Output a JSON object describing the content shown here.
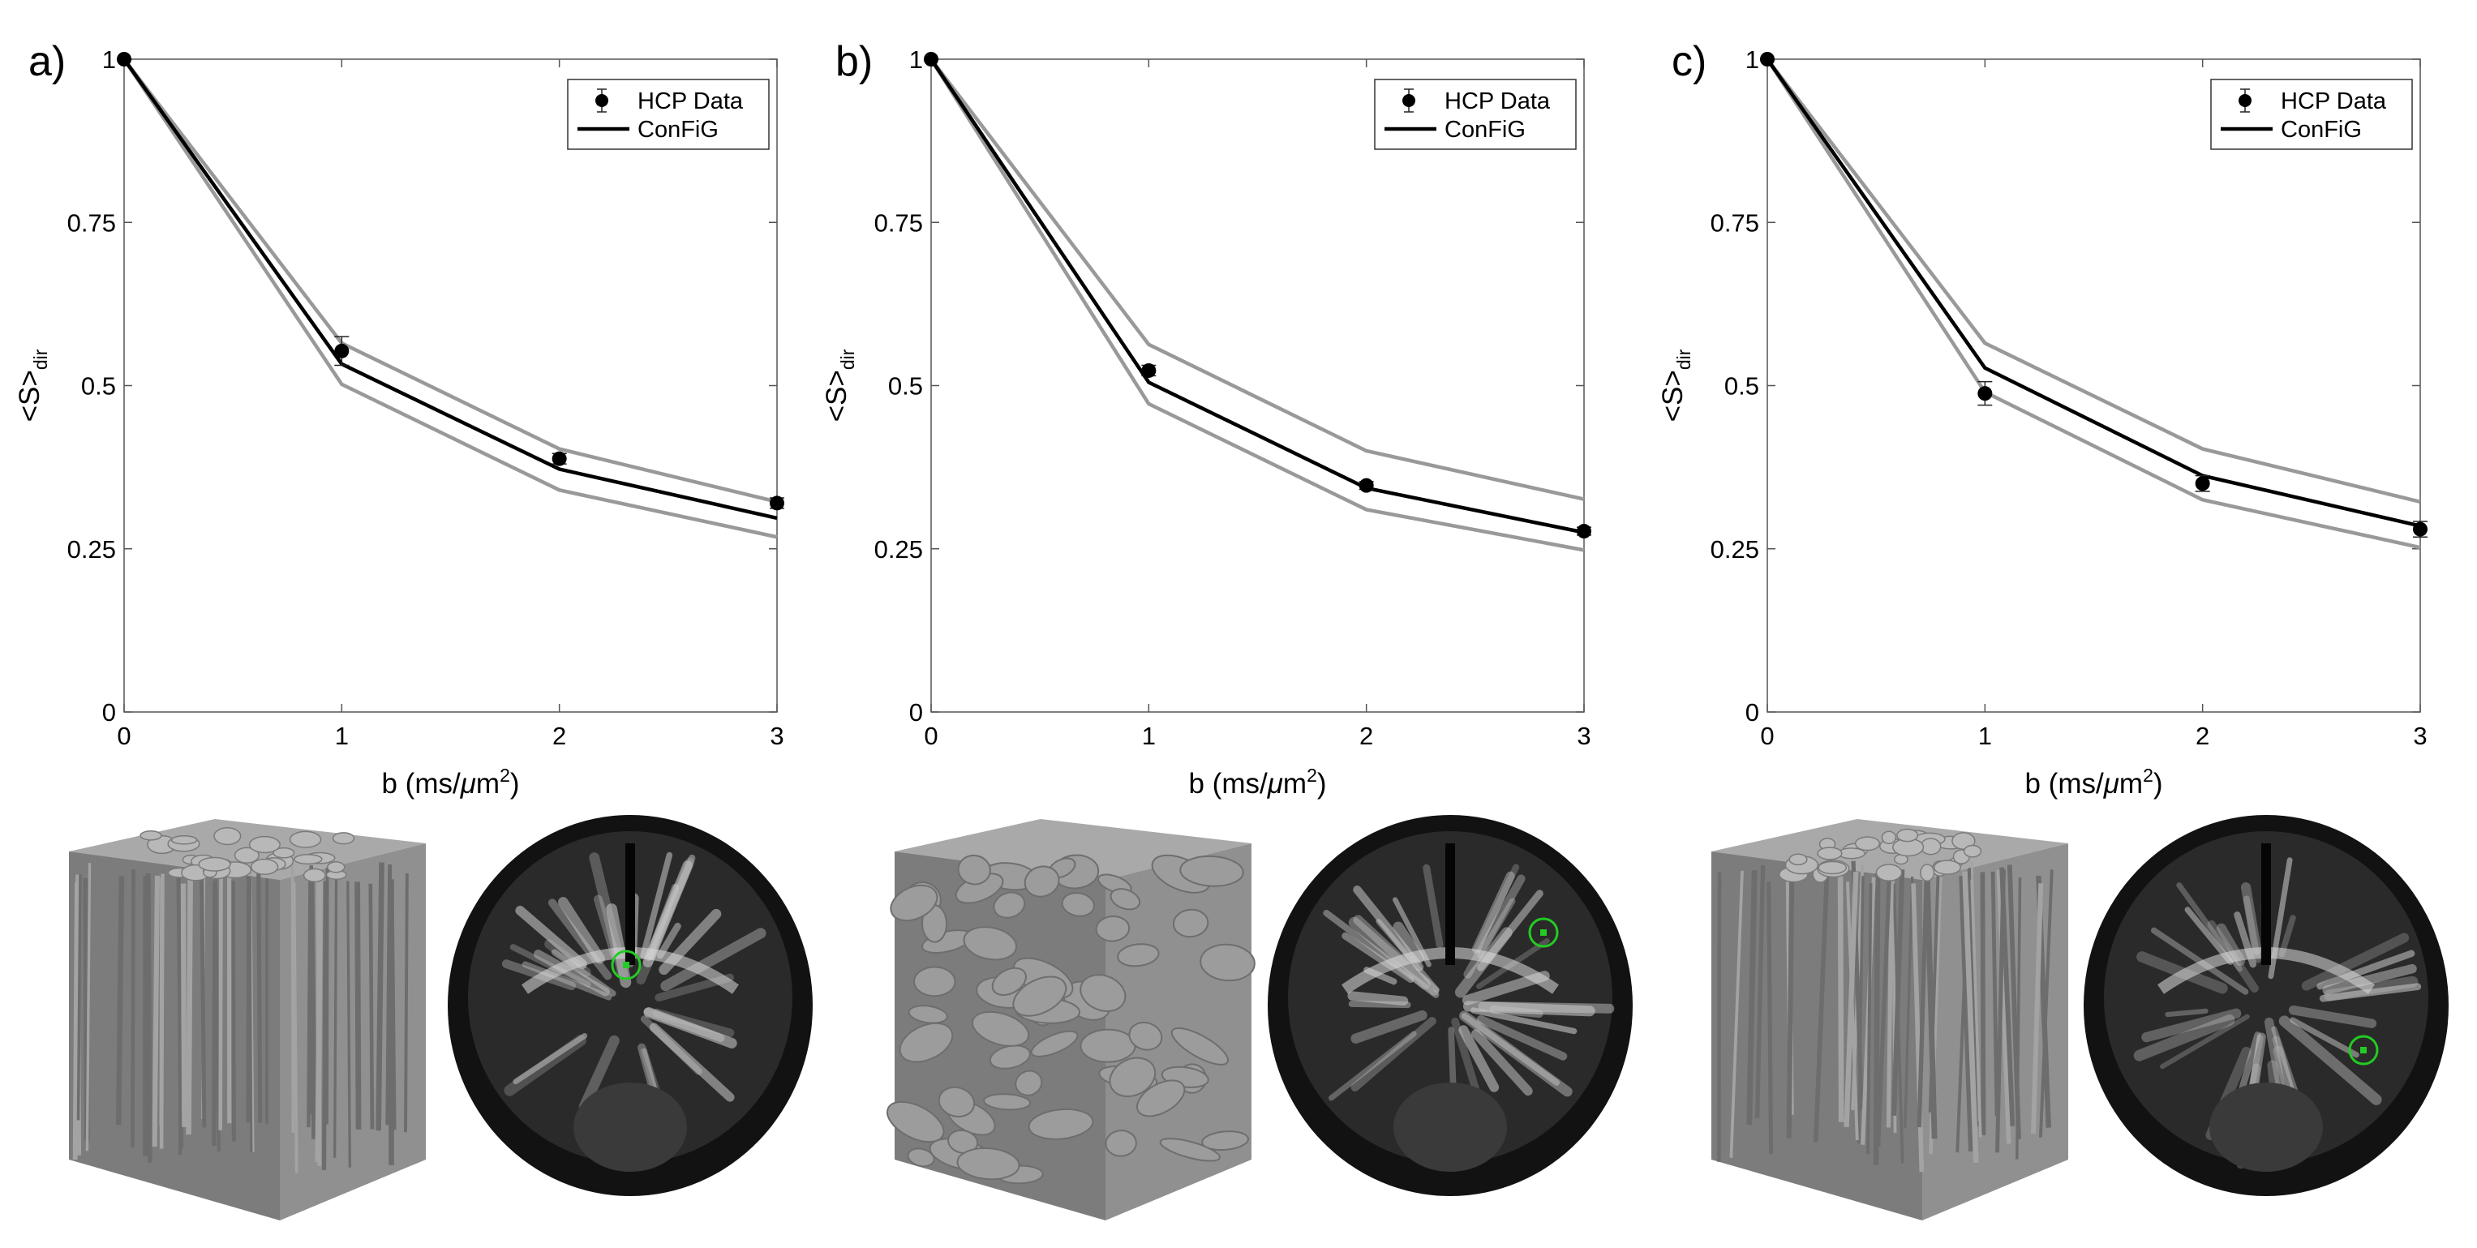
{
  "figure": {
    "panels": [
      {
        "label": "a)",
        "legend": [
          "HCP Data",
          "ConFiG"
        ],
        "brain_type": "coronal-deep",
        "substrate_type": "vertical"
      },
      {
        "label": "b)",
        "legend": [
          "HCP Data",
          "ConFiG"
        ],
        "brain_type": "coronal-mid",
        "substrate_type": "crossing"
      },
      {
        "label": "c)",
        "legend": [
          "HCP Data",
          "ConFiG"
        ],
        "brain_type": "coronal-posterior",
        "substrate_type": "dispersed"
      }
    ],
    "colors": {
      "data_marker": "#000000",
      "config_line": "#000000",
      "bounds_line": "#999999",
      "roi_marker": "#22cc22",
      "substrate": "#8a8a8a"
    }
  },
  "chart_data": [
    {
      "type": "line",
      "title": "",
      "xlabel": "b (ms/μm²)",
      "ylabel": "<S>dir",
      "xlim": [
        0,
        3
      ],
      "ylim": [
        0,
        1
      ],
      "xticks": [
        0,
        1,
        2,
        3
      ],
      "yticks": [
        0,
        0.25,
        0.5,
        0.75,
        1
      ],
      "ytick_labels": [
        "0",
        "0.25",
        "0.5",
        "0.75",
        "1"
      ],
      "grid": false,
      "legend_position": "top-right",
      "series": [
        {
          "name": "HCP Data",
          "kind": "errorbar",
          "x": [
            0,
            1,
            2,
            3
          ],
          "y": [
            1.0,
            0.553,
            0.388,
            0.32
          ],
          "err": [
            0,
            0.022,
            0.008,
            0.008
          ]
        },
        {
          "name": "ConFiG",
          "kind": "line",
          "x": [
            0,
            1,
            2,
            3
          ],
          "y": [
            1.0,
            0.533,
            0.372,
            0.297
          ]
        },
        {
          "kind": "bound",
          "x": [
            0,
            1,
            2,
            3
          ],
          "y": [
            1.0,
            0.565,
            0.403,
            0.322
          ]
        },
        {
          "kind": "bound",
          "x": [
            0,
            1,
            2,
            3
          ],
          "y": [
            1.0,
            0.502,
            0.34,
            0.268
          ]
        }
      ]
    },
    {
      "type": "line",
      "title": "",
      "xlabel": "b (ms/μm²)",
      "ylabel": "<S>dir",
      "xlim": [
        0,
        3
      ],
      "ylim": [
        0,
        1
      ],
      "xticks": [
        0,
        1,
        2,
        3
      ],
      "yticks": [
        0,
        0.25,
        0.5,
        0.75,
        1
      ],
      "ytick_labels": [
        "0",
        "0.25",
        "0.5",
        "0.75",
        "1"
      ],
      "grid": false,
      "legend_position": "top-right",
      "series": [
        {
          "name": "HCP Data",
          "kind": "errorbar",
          "x": [
            0,
            1,
            2,
            3
          ],
          "y": [
            1.0,
            0.523,
            0.347,
            0.277
          ],
          "err": [
            0,
            0.008,
            0.006,
            0.006
          ]
        },
        {
          "name": "ConFiG",
          "kind": "line",
          "x": [
            0,
            1,
            2,
            3
          ],
          "y": [
            1.0,
            0.505,
            0.343,
            0.275
          ]
        },
        {
          "kind": "bound",
          "x": [
            0,
            1,
            2,
            3
          ],
          "y": [
            1.0,
            0.563,
            0.4,
            0.326
          ]
        },
        {
          "kind": "bound",
          "x": [
            0,
            1,
            2,
            3
          ],
          "y": [
            1.0,
            0.472,
            0.31,
            0.248
          ]
        }
      ]
    },
    {
      "type": "line",
      "title": "",
      "xlabel": "b (ms/μm²)",
      "ylabel": "<S>dir",
      "xlim": [
        0,
        3
      ],
      "ylim": [
        0,
        1
      ],
      "xticks": [
        0,
        1,
        2,
        3
      ],
      "yticks": [
        0,
        0.25,
        0.5,
        0.75,
        1
      ],
      "ytick_labels": [
        "0",
        "0.25",
        "0.5",
        "0.75",
        "1"
      ],
      "grid": false,
      "legend_position": "top-right",
      "series": [
        {
          "name": "HCP Data",
          "kind": "errorbar",
          "x": [
            0,
            1,
            2,
            3
          ],
          "y": [
            1.0,
            0.488,
            0.35,
            0.28
          ],
          "err": [
            0,
            0.018,
            0.012,
            0.012
          ]
        },
        {
          "name": "ConFiG",
          "kind": "line",
          "x": [
            0,
            1,
            2,
            3
          ],
          "y": [
            1.0,
            0.527,
            0.362,
            0.285
          ]
        },
        {
          "kind": "bound",
          "x": [
            0,
            1,
            2,
            3
          ],
          "y": [
            1.0,
            0.565,
            0.403,
            0.322
          ]
        },
        {
          "kind": "bound",
          "x": [
            0,
            1,
            2,
            3
          ],
          "y": [
            1.0,
            0.49,
            0.325,
            0.252
          ]
        }
      ]
    }
  ]
}
